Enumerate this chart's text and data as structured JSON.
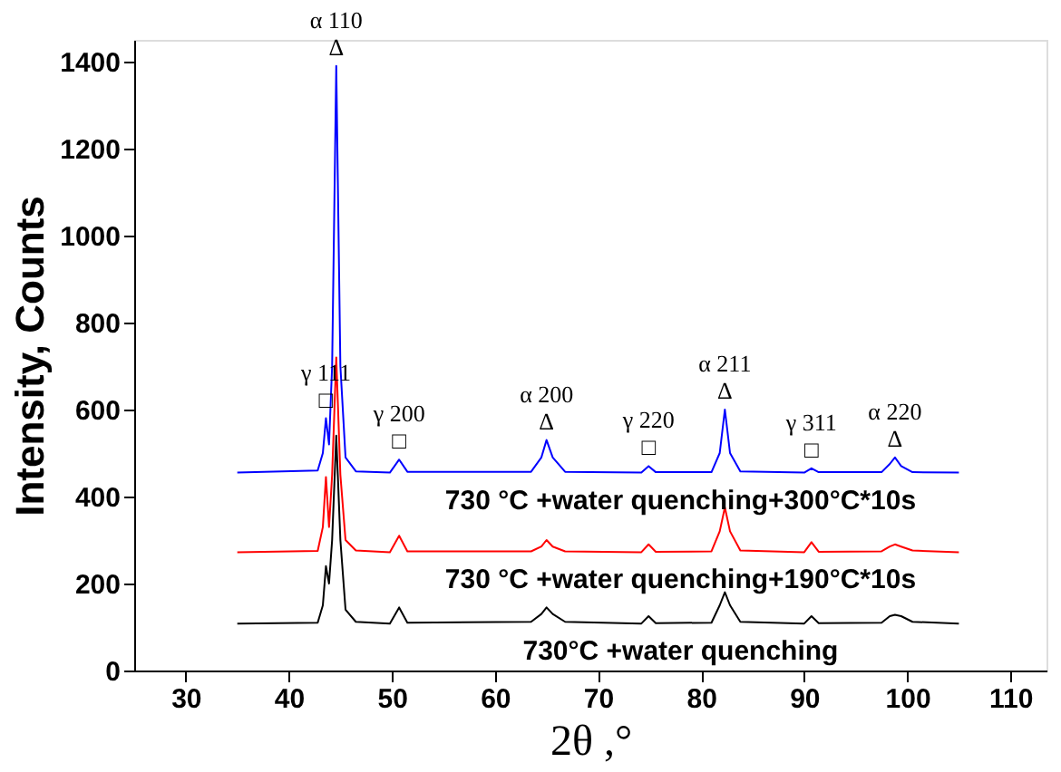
{
  "chart_data": {
    "type": "line",
    "xlabel": "2θ ,°",
    "ylabel": "Intensity, Counts",
    "x": [
      35,
      42.8,
      43.3,
      43.6,
      43.9,
      44.2,
      44.6,
      45.0,
      45.5,
      46.5,
      49.8,
      50.7,
      51.5,
      63.5,
      64.5,
      65.0,
      65.6,
      66.8,
      74.2,
      74.9,
      75.6,
      81.0,
      81.8,
      82.3,
      82.8,
      83.8,
      90.0,
      90.7,
      91.4,
      97.5,
      98.3,
      98.8,
      99.4,
      100.5,
      105
    ],
    "series": [
      {
        "name": "730 °C +water quenching+300°C*10s",
        "color": "#0000ff",
        "values": [
          455,
          460,
          500,
          580,
          520,
          700,
          1390,
          700,
          490,
          458,
          455,
          485,
          457,
          457,
          490,
          530,
          490,
          457,
          455,
          470,
          456,
          456,
          500,
          600,
          500,
          458,
          455,
          465,
          456,
          456,
          475,
          490,
          470,
          456,
          455
        ]
      },
      {
        "name": "730 °C +water quenching+190°C*10s",
        "color": "#ff0000",
        "values": [
          272,
          275,
          330,
          445,
          330,
          450,
          720,
          450,
          300,
          276,
          272,
          310,
          274,
          274,
          285,
          300,
          285,
          274,
          272,
          290,
          273,
          274,
          320,
          375,
          320,
          276,
          272,
          295,
          273,
          274,
          285,
          290,
          285,
          276,
          272
        ]
      },
      {
        "name": "730°C +water quenching",
        "color": "#000000",
        "values": [
          108,
          110,
          150,
          240,
          200,
          300,
          540,
          300,
          140,
          112,
          108,
          145,
          110,
          112,
          130,
          145,
          130,
          112,
          108,
          125,
          109,
          110,
          150,
          180,
          150,
          112,
          108,
          125,
          109,
          110,
          125,
          128,
          125,
          112,
          108
        ]
      }
    ],
    "xlim": [
      25,
      113.5
    ],
    "xticks": [
      30,
      40,
      50,
      60,
      70,
      80,
      90,
      100,
      110
    ],
    "ylim": [
      0,
      1450
    ],
    "yticks": [
      0,
      200,
      400,
      600,
      800,
      1000,
      1200,
      1400
    ],
    "grid": false,
    "legend": false,
    "line_style": "solid",
    "marker": "none",
    "annotations": [
      {
        "text": "Δ",
        "x": 44.6,
        "y": 1390
      },
      {
        "text": "α 110",
        "x": 44.6,
        "y": 1390
      },
      {
        "text": "□",
        "x": 43.6,
        "y": 580
      },
      {
        "text": "γ 111",
        "x": 43.6,
        "y": 580
      },
      {
        "text": "□",
        "x": 50.7,
        "y": 485
      },
      {
        "text": "γ 200",
        "x": 50.7,
        "y": 485
      },
      {
        "text": "Δ",
        "x": 65.0,
        "y": 530
      },
      {
        "text": "α 200",
        "x": 65.0,
        "y": 530
      },
      {
        "text": "□",
        "x": 74.9,
        "y": 470
      },
      {
        "text": "γ 220",
        "x": 74.9,
        "y": 470
      },
      {
        "text": "Δ",
        "x": 82.3,
        "y": 600
      },
      {
        "text": "α 211",
        "x": 82.3,
        "y": 600
      },
      {
        "text": "□",
        "x": 90.7,
        "y": 465
      },
      {
        "text": "γ 311",
        "x": 90.7,
        "y": 465
      },
      {
        "text": "Δ",
        "x": 98.8,
        "y": 490
      },
      {
        "text": "α 220",
        "x": 98.8,
        "y": 490
      }
    ]
  }
}
